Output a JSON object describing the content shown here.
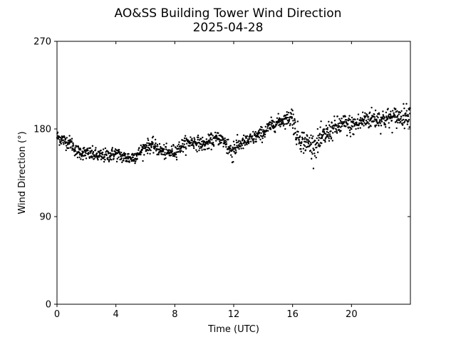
{
  "chart_data": {
    "type": "scatter",
    "title": "AO&SS Building Tower Wind Direction",
    "subtitle": "2025-04-28",
    "xlabel": "Time (UTC)",
    "ylabel": "Wind Direction (°)",
    "xlim": [
      0,
      24
    ],
    "ylim": [
      0,
      270
    ],
    "xticks": [
      0,
      4,
      8,
      12,
      16,
      20
    ],
    "xtick_labels": [
      "0",
      "4",
      "8",
      "12",
      "16",
      "20"
    ],
    "yticks": [
      0,
      90,
      180,
      270
    ],
    "ytick_labels": [
      "0",
      "90",
      "180",
      "270"
    ],
    "grid": false,
    "marker_color": "#000000",
    "trend": {
      "x": [
        0,
        0.5,
        1.0,
        1.3,
        2.0,
        2.7,
        3.0,
        3.5,
        4.0,
        4.5,
        5.0,
        5.5,
        6.0,
        6.5,
        7.0,
        7.5,
        8.0,
        8.5,
        9.0,
        9.5,
        10.0,
        10.5,
        11.0,
        11.5,
        11.8,
        12.0,
        12.5,
        13.0,
        13.5,
        14.0,
        14.5,
        15.0,
        15.5,
        16.0,
        16.2,
        16.5,
        17.0,
        17.5,
        18.0,
        18.5,
        19.0,
        19.5,
        20.0,
        20.5,
        21.0,
        21.5,
        22.0,
        22.5,
        23.0,
        23.5,
        24.0
      ],
      "y": [
        172,
        168,
        165,
        157,
        155,
        153,
        152,
        153,
        155,
        151,
        150,
        154,
        162,
        163,
        158,
        155,
        157,
        163,
        167,
        166,
        164,
        168,
        171,
        165,
        157,
        160,
        165,
        168,
        172,
        176,
        183,
        187,
        190,
        193,
        177,
        170,
        165,
        163,
        170,
        178,
        182,
        185,
        183,
        186,
        190,
        191,
        190,
        191,
        192,
        193,
        196
      ]
    },
    "noise_amplitude": 3.5,
    "point_count": 1440
  }
}
